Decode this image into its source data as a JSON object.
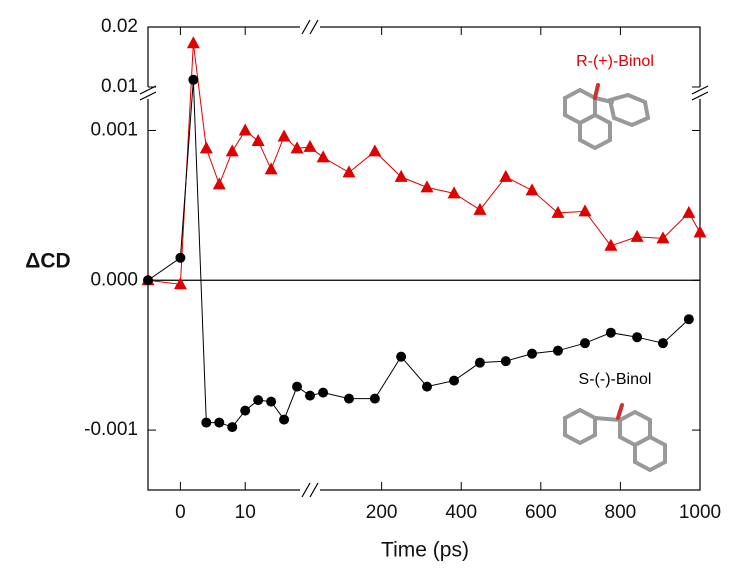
{
  "chart_data": {
    "type": "line",
    "x_label": "Time (ps)",
    "y_label": "ΔCD",
    "xlim_segments": [
      [
        -5,
        20
      ],
      [
        20,
        1000
      ]
    ],
    "ylim_segments": [
      [
        -0.0014,
        0.00125
      ],
      [
        0.009,
        0.02
      ]
    ],
    "xticks": [
      0,
      10,
      200,
      400,
      600,
      800,
      1000
    ],
    "yticks": [
      {
        "value": -0.001,
        "label": "-0.001"
      },
      {
        "value": 0,
        "label": "0.000"
      },
      {
        "value": 0.001,
        "label": "0.001"
      },
      0.01,
      0.02
    ],
    "series": [
      {
        "name": "R-(+)-Binol",
        "color": "#e00000",
        "marker": "triangle",
        "x": [
          -5,
          0,
          2,
          4,
          6,
          8,
          10,
          12,
          14,
          16,
          18,
          20,
          53,
          118,
          183,
          249,
          314,
          382,
          447,
          512,
          578,
          643,
          711,
          776,
          842,
          907,
          972,
          1000
        ],
        "values": [
          0,
          -2.7e-05,
          0.0173,
          0.00088,
          0.00064,
          0.00086,
          0.001,
          0.00093,
          0.00074,
          0.00096,
          0.00088,
          0.00089,
          0.00082,
          0.00072,
          0.00086,
          0.00069,
          0.00062,
          0.00058,
          0.00047,
          0.00069,
          0.0006,
          0.00045,
          0.00046,
          0.00023,
          0.00029,
          0.00028,
          0.00045,
          0.00032
        ]
      },
      {
        "name": "S-(-)-Binol",
        "color": "#000000",
        "marker": "circle",
        "x": [
          -5,
          0,
          2,
          4,
          6,
          8,
          10,
          12,
          14,
          16,
          18,
          20,
          53,
          118,
          183,
          249,
          314,
          382,
          447,
          512,
          578,
          643,
          711,
          776,
          842,
          907,
          972
        ],
        "values": [
          0,
          0.00015,
          0.0112,
          -0.00095,
          -0.00095,
          -0.00098,
          -0.00087,
          -0.0008,
          -0.00081,
          -0.00093,
          -0.00071,
          -0.00077,
          -0.00075,
          -0.00079,
          -0.00079,
          -0.00051,
          -0.00071,
          -0.00067,
          -0.00055,
          -0.00054,
          -0.00049,
          -0.00047,
          -0.00042,
          -0.00035,
          -0.00038,
          -0.00042,
          -0.00026
        ]
      }
    ]
  }
}
